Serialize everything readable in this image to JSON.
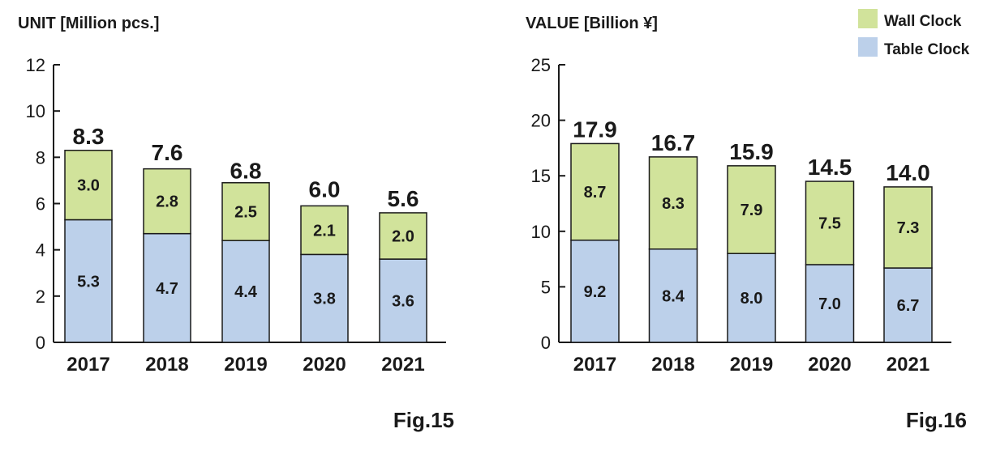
{
  "colors": {
    "wall": "#d1e39b",
    "table": "#bcd0ea",
    "text": "#1a1a1a"
  },
  "legend": {
    "items": [
      {
        "name": "Wall Clock",
        "color": "#d1e39b"
      },
      {
        "name": "Table Clock",
        "color": "#bcd0ea"
      }
    ]
  },
  "chart_data": [
    {
      "type": "bar",
      "stacked": true,
      "title": "UNIT [Million pcs.]",
      "figure_label": "Fig.15",
      "categories": [
        "2017",
        "2018",
        "2019",
        "2020",
        "2021"
      ],
      "series": [
        {
          "name": "Table Clock",
          "values": [
            5.3,
            4.7,
            4.4,
            3.8,
            3.6
          ],
          "labels": [
            "5.3",
            "4.7",
            "4.4",
            "3.8",
            "3.6"
          ]
        },
        {
          "name": "Wall Clock",
          "values": [
            3.0,
            2.8,
            2.5,
            2.1,
            2.0
          ],
          "labels": [
            "3.0",
            "2.8",
            "2.5",
            "2.1",
            "2.0"
          ]
        }
      ],
      "totals": [
        8.3,
        7.6,
        6.8,
        6.0,
        5.6
      ],
      "total_labels": [
        "8.3",
        "7.6",
        "6.8",
        "6.0",
        "5.6"
      ],
      "ylim": [
        0,
        12
      ],
      "yticks": [
        0,
        2,
        4,
        6,
        8,
        10,
        12
      ],
      "ytick_labels": [
        "0",
        "2",
        "4",
        "6",
        "8",
        "10",
        "12"
      ],
      "xlabel": "",
      "ylabel": "UNIT [Million pcs.]",
      "grid": false
    },
    {
      "type": "bar",
      "stacked": true,
      "title": "VALUE [Billion ¥]",
      "figure_label": "Fig.16",
      "categories": [
        "2017",
        "2018",
        "2019",
        "2020",
        "2021"
      ],
      "series": [
        {
          "name": "Table Clock",
          "values": [
            9.2,
            8.4,
            8.0,
            7.0,
            6.7
          ],
          "labels": [
            "9.2",
            "8.4",
            "8.0",
            "7.0",
            "6.7"
          ]
        },
        {
          "name": "Wall Clock",
          "values": [
            8.7,
            8.3,
            7.9,
            7.5,
            7.3
          ],
          "labels": [
            "8.7",
            "8.3",
            "7.9",
            "7.5",
            "7.3"
          ]
        }
      ],
      "totals": [
        17.9,
        16.7,
        15.9,
        14.5,
        14.0
      ],
      "total_labels": [
        "17.9",
        "16.7",
        "15.9",
        "14.5",
        "14.0"
      ],
      "ylim": [
        0,
        25
      ],
      "yticks": [
        0,
        5,
        10,
        15,
        20,
        25
      ],
      "ytick_labels": [
        "0",
        "5",
        "10",
        "15",
        "20",
        "25"
      ],
      "xlabel": "",
      "ylabel": "VALUE [Billion ¥]",
      "grid": false
    }
  ]
}
